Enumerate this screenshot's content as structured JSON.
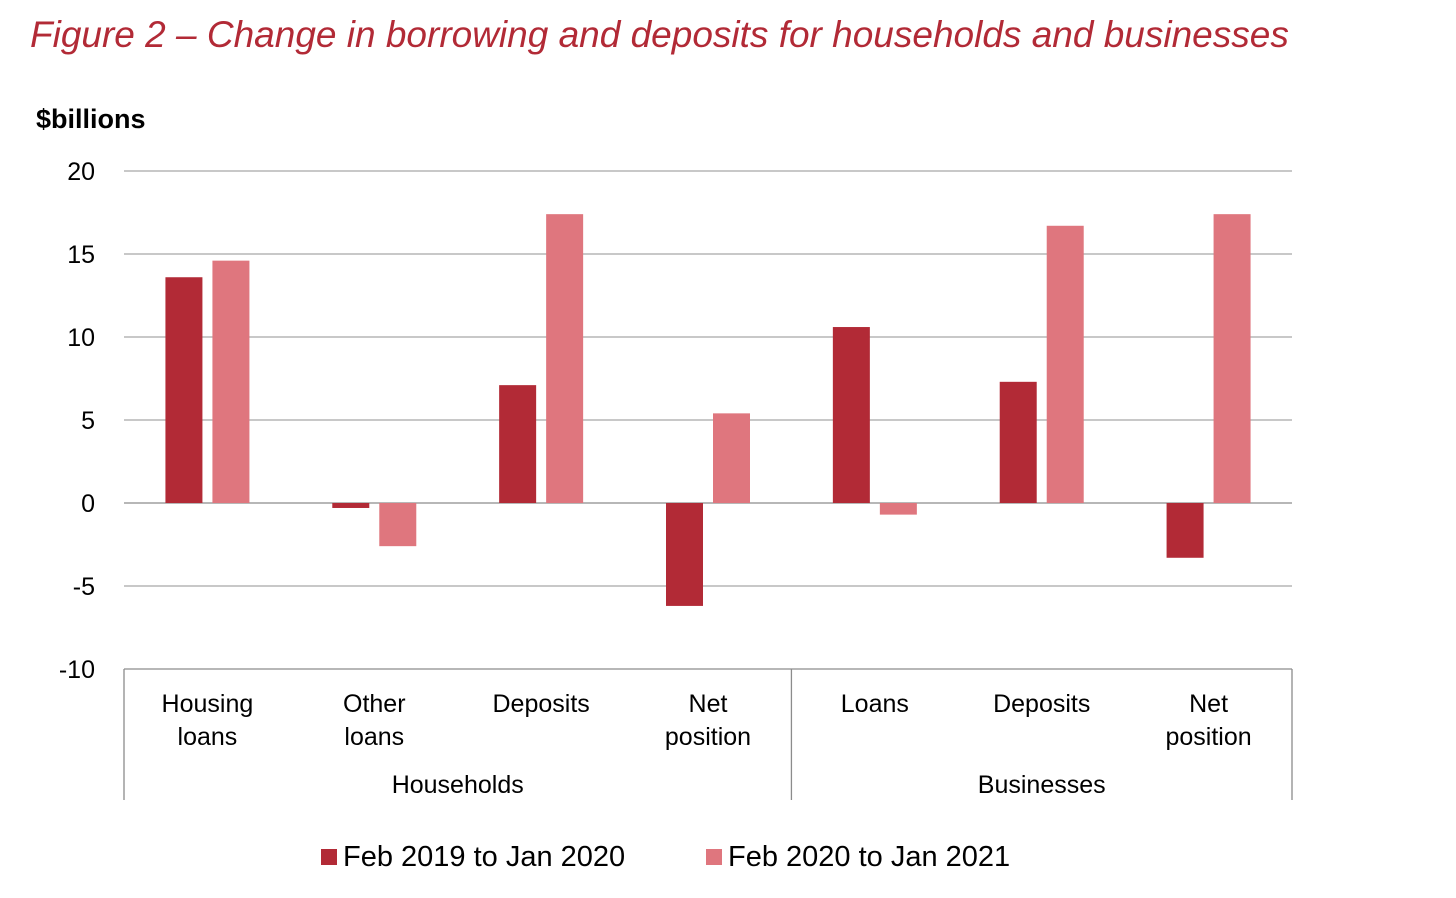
{
  "title": "Figure 2 – Change in borrowing and deposits for households and businesses",
  "chart_data": {
    "type": "bar",
    "title": "Figure 2 – Change in borrowing and deposits for households and businesses",
    "ylabel": "$billions",
    "xlabel": "",
    "ylim": [
      -10,
      20
    ],
    "yticks": [
      20,
      15,
      10,
      5,
      0,
      -5,
      -10
    ],
    "grid": true,
    "legend_position": "bottom",
    "groups": [
      {
        "name": "Households",
        "categories": [
          [
            "Housing",
            "loans"
          ],
          [
            "Other",
            "loans"
          ],
          [
            "Deposits"
          ],
          [
            "Net",
            "position"
          ]
        ]
      },
      {
        "name": "Businesses",
        "categories": [
          [
            "Loans"
          ],
          [
            "Deposits"
          ],
          [
            "Net",
            "position"
          ]
        ]
      }
    ],
    "categories": [
      "Housing loans",
      "Other loans",
      "Deposits",
      "Net position",
      "Loans",
      "Deposits",
      "Net position"
    ],
    "series": [
      {
        "name": "Feb 2019 to Jan 2020",
        "color": "#b22a36",
        "values": [
          13.6,
          -0.3,
          7.1,
          -6.2,
          10.6,
          7.3,
          -3.3
        ]
      },
      {
        "name": "Feb 2020 to Jan 2021",
        "color": "#df767e",
        "values": [
          14.6,
          -2.6,
          17.4,
          5.4,
          -0.7,
          16.7,
          17.4
        ]
      }
    ]
  }
}
